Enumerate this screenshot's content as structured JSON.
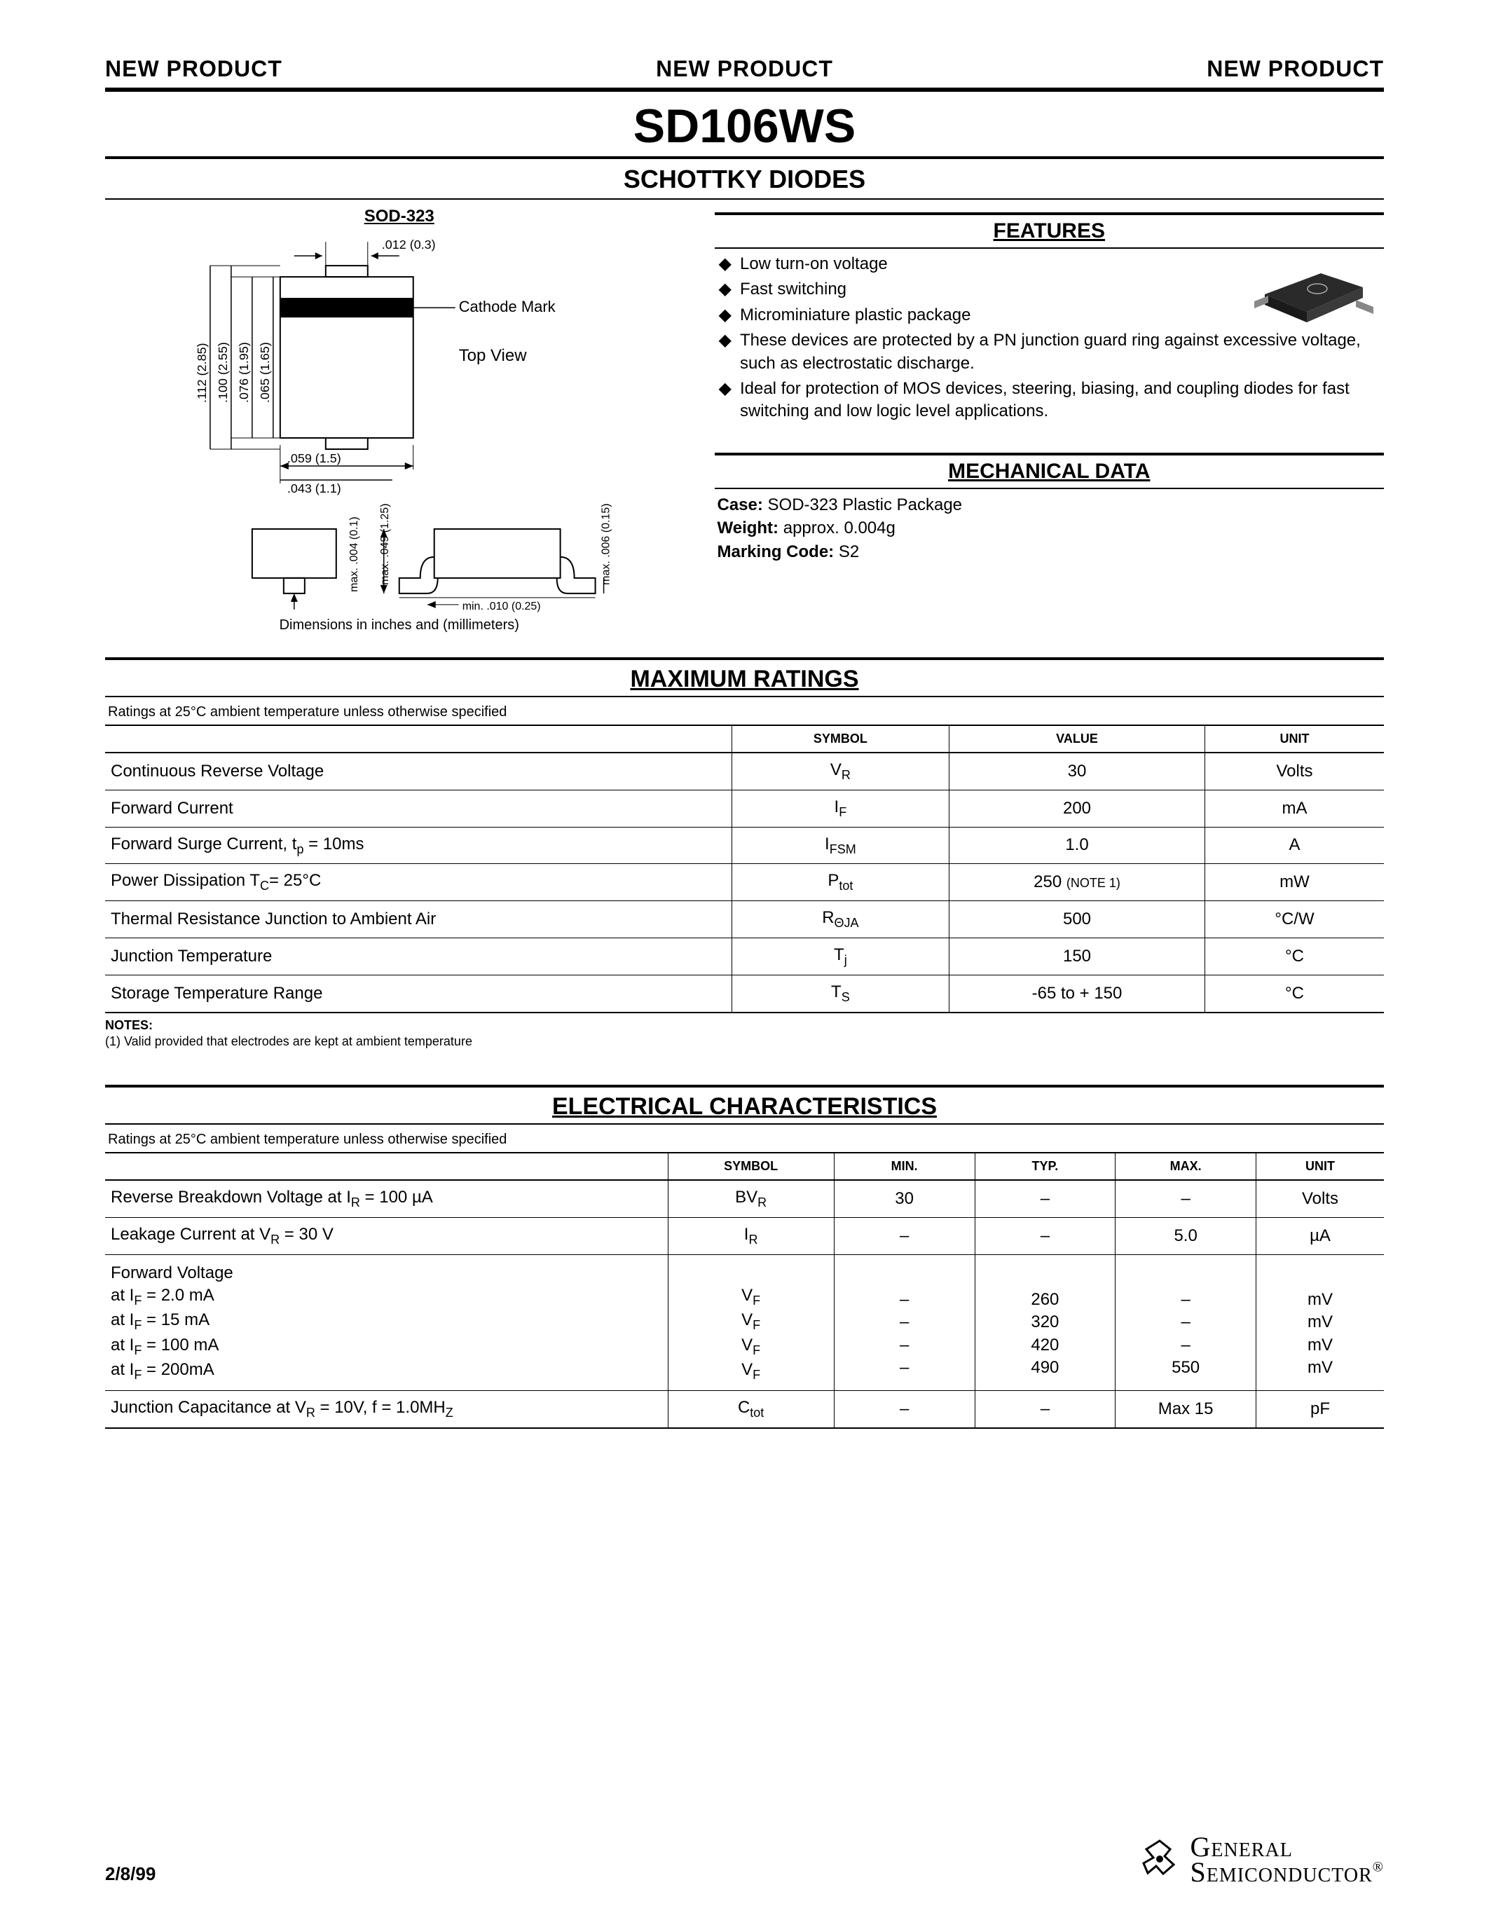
{
  "banner": {
    "text": "NEW PRODUCT"
  },
  "part_number": "SD106WS",
  "subtitle": "SCHOTTKY DIODES",
  "package_label": "SOD-323",
  "diagram": {
    "top_view_label": "Top View",
    "cathode_label": "Cathode Mark",
    "note": "Dimensions in inches and (millimeters)",
    "dims": {
      "top_w": ".012 (0.3)",
      "h_outer": ".112 (2.85)",
      "h_mid": ".100 (2.55)",
      "h_inner1": ".076 (1.95)",
      "h_inner2": ".065 (1.65)",
      "bot_w1": ".059 (1.5)",
      "bot_w2": ".043 (1.1)",
      "side_h1": "max. .004 (0.1)",
      "side_h2": "max. .049 (1.25)",
      "side_h3": "max. .006 (0.15)",
      "lead_min": "min. .010 (0.25)"
    }
  },
  "features": {
    "heading": "FEATURES",
    "items": [
      "Low turn-on voltage",
      "Fast switching",
      "Microminiature plastic package",
      "These devices are protected by a PN junction guard ring against excessive voltage, such as electrostatic discharge.",
      "Ideal for protection of MOS devices, steering, biasing, and coupling diodes for fast switching and low logic level applications."
    ]
  },
  "mechanical": {
    "heading": "MECHANICAL DATA",
    "case_label": "Case:",
    "case_value": "SOD-323 Plastic Package",
    "weight_label": "Weight:",
    "weight_value": "approx. 0.004g",
    "marking_label": "Marking Code:",
    "marking_value": "S2"
  },
  "max_ratings": {
    "heading": "MAXIMUM RATINGS",
    "condition": "Ratings at 25°C ambient temperature unless otherwise specified",
    "columns": [
      "",
      "SYMBOL",
      "VALUE",
      "UNIT"
    ],
    "col_widths": [
      "49%",
      "17%",
      "20%",
      "14%"
    ],
    "rows": [
      {
        "param": "Continuous Reverse Voltage",
        "symbol": "V",
        "sub": "R",
        "value": "30",
        "unit": "Volts"
      },
      {
        "param": "Forward Current",
        "symbol": "I",
        "sub": "F",
        "value": "200",
        "unit": "mA"
      },
      {
        "param": "Forward Surge Current, t",
        "param_sub": "p",
        "param_suffix": " = 10ms",
        "symbol": "I",
        "sub": "FSM",
        "value": "1.0",
        "unit": "A"
      },
      {
        "param": "Power Dissipation T",
        "param_sub": "C",
        "param_suffix": "= 25°C",
        "symbol": "P",
        "sub": "tot",
        "value": "250 ",
        "value_note": "(NOTE 1)",
        "unit": "mW"
      },
      {
        "param": "Thermal Resistance Junction to Ambient Air",
        "symbol": "R",
        "sub": "ΘJA",
        "value": "500",
        "unit": "°C/W"
      },
      {
        "param": "Junction Temperature",
        "symbol": "T",
        "sub": "j",
        "value": "150",
        "unit": "°C"
      },
      {
        "param": "Storage Temperature Range",
        "symbol": "T",
        "sub": "S",
        "value": "-65 to + 150",
        "unit": "°C"
      }
    ],
    "notes_heading": "NOTES:",
    "notes": "(1) Valid provided that electrodes are kept at ambient temperature"
  },
  "elec": {
    "heading": "ELECTRICAL CHARACTERISTICS",
    "condition": "Ratings at 25°C ambient temperature unless otherwise specified",
    "columns": [
      "",
      "SYMBOL",
      "MIN.",
      "TYP.",
      "MAX.",
      "UNIT"
    ],
    "col_widths": [
      "44%",
      "13%",
      "11%",
      "11%",
      "11%",
      "10%"
    ],
    "rows": [
      {
        "param_html": "Reverse Breakdown Voltage at I<span class='sub'>R</span> = 100 µA",
        "symbol": "BV",
        "sub": "R",
        "min": "30",
        "typ": "–",
        "max": "–",
        "unit": "Volts"
      },
      {
        "param_html": "Leakage Current at V<span class='sub'>R</span> = 30 V",
        "symbol": "I",
        "sub": "R",
        "min": "–",
        "typ": "–",
        "max": "5.0",
        "unit": "µA"
      },
      {
        "param_html": "Forward Voltage<br>at I<span class='sub'>F</span> = 2.0 mA<br>at I<span class='sub'>F</span> = 15 mA<br>at I<span class='sub'>F</span> = 100 mA<br>at I<span class='sub'>F</span> = 200mA",
        "symbol_multi": "V<span class='sub'>F</span><br>V<span class='sub'>F</span><br>V<span class='sub'>F</span><br>V<span class='sub'>F</span>",
        "min": "<br>–<br>–<br>–<br>–",
        "typ": "<br>260<br>320<br>420<br>490",
        "max": "<br>–<br>–<br>–<br>550",
        "unit": "<br>mV<br>mV<br>mV<br>mV",
        "multi": true
      },
      {
        "param_html": "Junction Capacitance at V<span class='sub'>R</span> = 10V, f = 1.0MH<span class='sub'>Z</span>",
        "symbol": "C",
        "sub": "tot",
        "min": "–",
        "typ": "–",
        "max": "Max 15",
        "unit": "pF"
      }
    ]
  },
  "footer": {
    "date": "2/8/99",
    "company_l1": "General",
    "company_l2": "Semiconductor"
  },
  "colors": {
    "text": "#000000",
    "bg": "#ffffff",
    "rule": "#000000",
    "chip_body": "#2a2a2a",
    "chip_lead": "#888888"
  }
}
